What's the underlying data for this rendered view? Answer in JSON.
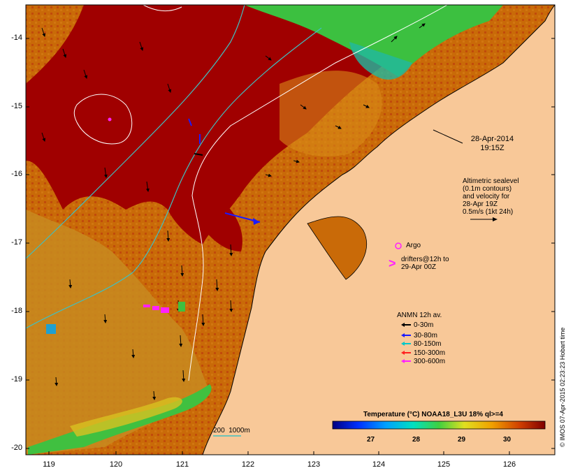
{
  "map": {
    "datetime_line1": "28-Apr-2014",
    "datetime_line2": "19:15Z",
    "altimetry_lines": [
      "Altimetric sealevel",
      "(0.1m contours)",
      "and velocity for",
      "28-Apr 19Z",
      "0.5m/s (1kt 24h)"
    ],
    "argo_label": "Argo",
    "drifters_lines": [
      "drifters@12h to",
      "29-Apr 00Z"
    ],
    "anmn_title": "ANMN 12h av.",
    "anmn_legend": [
      {
        "label": "0-30m",
        "color": "#000000"
      },
      {
        "label": "30-80m",
        "color": "#1a1aff"
      },
      {
        "label": "80-150m",
        "color": "#00c8c8"
      },
      {
        "label": "150-300m",
        "color": "#ff2020"
      },
      {
        "label": "300-600m",
        "color": "#ff20ff"
      }
    ],
    "isobath_label": "200  1000m",
    "colorbar": {
      "title": "Temperature (°C) NOAA18_L3U 18% ql>=4",
      "ticks": [
        "27",
        "28",
        "29",
        "30"
      ]
    },
    "credit": "© IMOS 07-Apr-2015 02:23:23 Hobart time",
    "y_ticks": [
      "-14",
      "-15",
      "-16",
      "-17",
      "-18",
      "-19",
      "-20"
    ],
    "x_ticks": [
      "119",
      "120",
      "121",
      "122",
      "123",
      "124",
      "125",
      "126"
    ],
    "colors": {
      "land": "#f8c898",
      "sst_hot": "#a00000",
      "sst_warm": "#d04a00",
      "sst_mid": "#c87a10",
      "sst_green": "#40c040",
      "contour": "#ffffff",
      "isobath": "#40c0c0"
    }
  }
}
